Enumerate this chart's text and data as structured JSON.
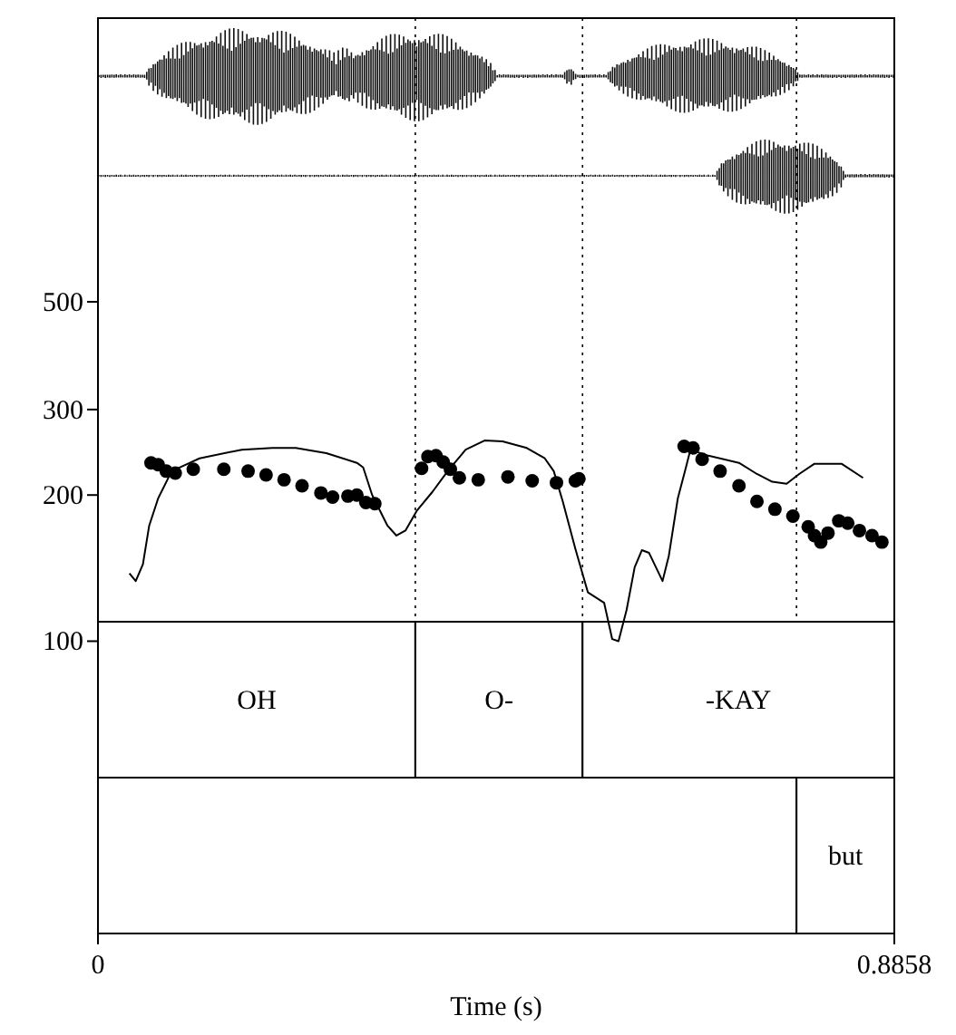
{
  "chart_data": {
    "type": "line",
    "xlabel": "Time (s)",
    "log": "y",
    "xlim": [
      0,
      0.8858
    ],
    "xticks": [
      0,
      0.8858
    ],
    "ylim": [
      25,
      1920
    ],
    "yticks": [
      100,
      200,
      300,
      500
    ],
    "marker": "circle",
    "series": [
      {
        "type": "scatter",
        "color": "#000000",
        "x": [
          0.059,
          0.067,
          0.076,
          0.086,
          0.106,
          0.14,
          0.167,
          0.187,
          0.207,
          0.227,
          0.248,
          0.261,
          0.278,
          0.288,
          0.298,
          0.308,
          0.36,
          0.367,
          0.376,
          0.384,
          0.392,
          0.402,
          0.423,
          0.456,
          0.483,
          0.51,
          0.531,
          0.535,
          0.652,
          0.662,
          0.672,
          0.692,
          0.713,
          0.733,
          0.753,
          0.773,
          0.79,
          0.797,
          0.804,
          0.812,
          0.824,
          0.834,
          0.847,
          0.861,
          0.872
        ],
        "values": [
          233,
          231,
          224,
          222,
          226,
          226,
          224,
          220,
          215,
          209,
          202,
          198,
          199,
          200,
          193,
          192,
          227,
          240,
          241,
          234,
          226,
          217,
          215,
          218,
          214,
          212,
          214,
          216,
          252,
          250,
          237,
          224,
          209,
          194,
          187,
          181,
          172,
          165,
          160,
          167,
          177,
          175,
          169,
          165,
          160
        ]
      },
      {
        "type": "line",
        "color": "#000000",
        "marker": "none",
        "line_style": "solid",
        "x": [
          0.035,
          0.042,
          0.05,
          0.057,
          0.067,
          0.082,
          0.113,
          0.16,
          0.194,
          0.22,
          0.254,
          0.288,
          0.295,
          0.305,
          0.322,
          0.332,
          0.342,
          0.355,
          0.372,
          0.389,
          0.409,
          0.43,
          0.45,
          0.477,
          0.497,
          0.507,
          0.517,
          0.531,
          0.545,
          0.563,
          0.572,
          0.579,
          0.588,
          0.597,
          0.605,
          0.613,
          0.628,
          0.635,
          0.645,
          0.654,
          0.659,
          0.679,
          0.713,
          0.733,
          0.75,
          0.766,
          0.78,
          0.797,
          0.827,
          0.851
        ],
        "values": [
          138,
          133,
          144,
          173,
          197,
          224,
          238,
          248,
          250,
          250,
          244,
          233,
          228,
          200,
          173,
          165,
          169,
          186,
          203,
          224,
          248,
          259,
          258,
          250,
          238,
          224,
          194,
          155,
          126,
          120,
          101,
          100,
          116,
          142,
          154,
          152,
          133,
          150,
          197,
          228,
          248,
          241,
          233,
          221,
          213,
          211,
          221,
          232,
          232,
          217
        ]
      }
    ],
    "ref_lines": [
      {
        "axis": "x",
        "value": 0.353,
        "line_style": "dotted"
      },
      {
        "axis": "x",
        "value": 0.539,
        "line_style": "dotted"
      },
      {
        "axis": "x",
        "value": 0.777,
        "line_style": "dotted"
      }
    ],
    "bands": [
      {
        "axis": "x",
        "from": 0,
        "to": 0.353,
        "label": "OH",
        "color": "#ffffff"
      },
      {
        "axis": "x",
        "from": 0.353,
        "to": 0.539,
        "label": "O-",
        "color": "#ffffff"
      },
      {
        "axis": "x",
        "from": 0.539,
        "to": 0.8858,
        "label": "-KAY",
        "color": "#ffffff"
      },
      {
        "axis": "x",
        "from": 0,
        "to": 0.777,
        "label": null,
        "color": "#ffffff"
      },
      {
        "axis": "x",
        "from": 0.777,
        "to": 0.8858,
        "label": "but",
        "color": "#ffffff"
      }
    ]
  }
}
